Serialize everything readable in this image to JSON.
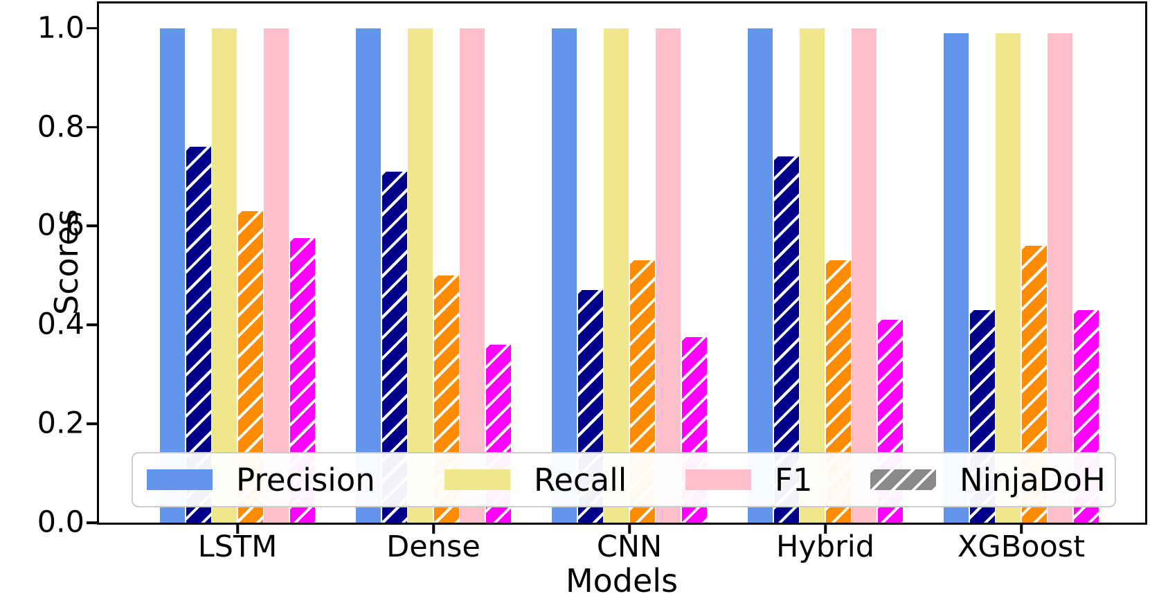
{
  "chart_data": {
    "type": "bar",
    "title": "",
    "xlabel": "Models",
    "ylabel": "Scores",
    "categories": [
      "LSTM",
      "Dense",
      "CNN",
      "Hybrid",
      "XGBoost"
    ],
    "series": [
      {
        "name": "Precision",
        "color": "#6495ED",
        "hatch": false,
        "values": [
          1.0,
          1.0,
          1.0,
          1.0,
          0.99
        ]
      },
      {
        "name": "Precision (NinjaDoH)",
        "color": "#00008B",
        "hatch": true,
        "values": [
          0.76,
          0.71,
          0.47,
          0.74,
          0.43
        ]
      },
      {
        "name": "Recall",
        "color": "#F0E68C",
        "hatch": false,
        "values": [
          1.0,
          1.0,
          1.0,
          1.0,
          0.99
        ]
      },
      {
        "name": "Recall (NinjaDoH)",
        "color": "#FF8C00",
        "hatch": true,
        "values": [
          0.63,
          0.5,
          0.53,
          0.53,
          0.56
        ]
      },
      {
        "name": "F1",
        "color": "#FFC0CB",
        "hatch": false,
        "values": [
          1.0,
          1.0,
          1.0,
          1.0,
          0.99
        ]
      },
      {
        "name": "F1 (NinjaDoH)",
        "color": "#FF00FF",
        "hatch": true,
        "values": [
          0.575,
          0.36,
          0.375,
          0.41,
          0.43
        ]
      }
    ],
    "ylim": [
      0,
      1.05
    ],
    "ytick_labels": [
      "0.0",
      "0.2",
      "0.4",
      "0.6",
      "0.8",
      "1.0"
    ],
    "ytick_values": [
      0.0,
      0.2,
      0.4,
      0.6,
      0.8,
      1.0
    ],
    "grid": false,
    "legend": {
      "position": "lower center",
      "entries": [
        {
          "label": "Precision",
          "color": "#6495ED",
          "hatch": false
        },
        {
          "label": "Recall",
          "color": "#F0E68C",
          "hatch": false
        },
        {
          "label": "F1",
          "color": "#FFC0CB",
          "hatch": false
        },
        {
          "label": "NinjaDoH",
          "color": "#8a8a8a",
          "hatch": true
        }
      ]
    }
  }
}
